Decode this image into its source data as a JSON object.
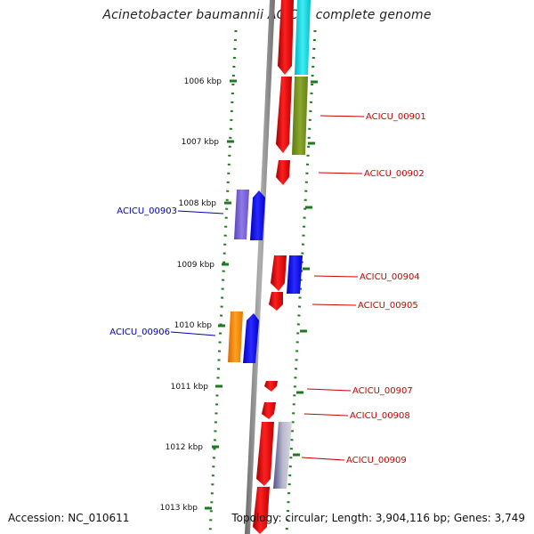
{
  "title": "Acinetobacter baumannii ACICU, complete genome",
  "footer": {
    "accession": "Accession: NC_010611",
    "topology": "Topology: circular; Length: 3,904,116 bp; Genes: 3,749"
  },
  "scale_ticks": [
    {
      "label": "1006 kbp"
    },
    {
      "label": "1007 kbp"
    },
    {
      "label": "1008 kbp"
    },
    {
      "label": "1009 kbp"
    },
    {
      "label": "1010 kbp"
    },
    {
      "label": "1011 kbp"
    },
    {
      "label": "1012 kbp"
    },
    {
      "label": "1013 kbp"
    }
  ],
  "colors": {
    "backbone": "#8c8c8c",
    "dots": "#1e7a1e",
    "forward_label": "#cc0000",
    "reverse_label": "#0000bb"
  },
  "gene_labels": [
    {
      "text": "ACICU_00901",
      "strand": "forward"
    },
    {
      "text": "ACICU_00902",
      "strand": "forward"
    },
    {
      "text": "ACICU_00903",
      "strand": "reverse"
    },
    {
      "text": "ACICU_00904",
      "strand": "forward"
    },
    {
      "text": "ACICU_00905",
      "strand": "forward"
    },
    {
      "text": "ACICU_00906",
      "strand": "reverse"
    },
    {
      "text": "ACICU_00907",
      "strand": "forward"
    },
    {
      "text": "ACICU_00908",
      "strand": "forward"
    },
    {
      "text": "ACICU_00909",
      "strand": "forward"
    }
  ]
}
